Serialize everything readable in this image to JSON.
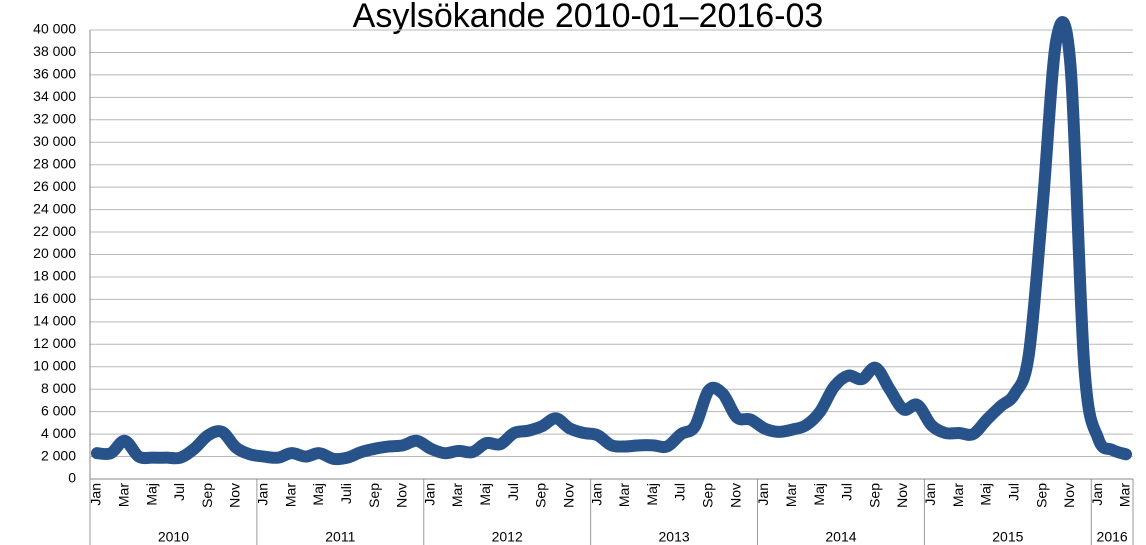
{
  "chart_data": {
    "type": "line",
    "title": "Asylsökande 2010-01–2016-03",
    "categories": [
      "Jan",
      null,
      "Mar",
      null,
      "Maj",
      null,
      "Jul",
      null,
      "Sep",
      null,
      "Nov",
      null,
      "Jan",
      null,
      "Mar",
      null,
      "Maj",
      null,
      "Juli",
      null,
      "Sep",
      null,
      "Nov",
      null,
      "Jan",
      null,
      "Mar",
      null,
      "Maj",
      null,
      "Jul",
      null,
      "Sep",
      null,
      "Nov",
      null,
      "Jan",
      null,
      "Mar",
      null,
      "Maj",
      null,
      "Jul",
      null,
      "Sep",
      null,
      "Nov",
      null,
      "Jan",
      null,
      "Mar",
      null,
      "Maj",
      null,
      "Jul",
      null,
      "Sep",
      null,
      "Nov",
      null,
      "Jan",
      null,
      "Mar",
      null,
      "Maj",
      null,
      "Jul",
      null,
      "Sep",
      null,
      "Nov",
      null,
      "Jan",
      null,
      "Mar"
    ],
    "years": [
      "2010",
      "2011",
      "2012",
      "2013",
      "2014",
      "2015",
      "2016"
    ],
    "series": [
      {
        "color": "#27538a",
        "values": [
          2300,
          2300,
          3400,
          2000,
          1900,
          1900,
          1900,
          2700,
          3900,
          4200,
          2800,
          2200,
          2000,
          1900,
          2300,
          2000,
          2300,
          1800,
          1900,
          2400,
          2700,
          2900,
          3000,
          3400,
          2700,
          2300,
          2500,
          2400,
          3200,
          3100,
          4100,
          4300,
          4700,
          5400,
          4500,
          4100,
          3900,
          3000,
          2900,
          3000,
          3000,
          2900,
          4000,
          4700,
          7900,
          7600,
          5500,
          5300,
          4500,
          4200,
          4400,
          4800,
          6000,
          8200,
          9200,
          8900,
          9900,
          8000,
          6200,
          6600,
          4800,
          4100,
          4100,
          4000,
          5300,
          6500,
          7600,
          11000,
          24300,
          39200,
          36900,
          10000,
          3600,
          2600,
          2200
        ]
      }
    ],
    "ylim": [
      0,
      40000
    ],
    "yticks": [
      0,
      {
        "value": 2000,
        "label": "2 000"
      },
      {
        "value": 4000,
        "label": "4 000"
      },
      {
        "value": 6000,
        "label": "6 000"
      },
      {
        "value": 8000,
        "label": "8 000"
      },
      {
        "value": 10000,
        "label": "10 000"
      },
      {
        "value": 12000,
        "label": "12 000"
      },
      {
        "value": 14000,
        "label": "14 000"
      },
      {
        "value": 16000,
        "label": "16 000"
      },
      {
        "value": 18000,
        "label": "18 000"
      },
      {
        "value": 20000,
        "label": "20 000"
      },
      {
        "value": 22000,
        "label": "22 000"
      },
      {
        "value": 24000,
        "label": "24 000"
      },
      {
        "value": 26000,
        "label": "26 000"
      },
      {
        "value": 28000,
        "label": "28 000"
      },
      {
        "value": 30000,
        "label": "30 000"
      },
      {
        "value": 32000,
        "label": "32 000"
      },
      {
        "value": 34000,
        "label": "34 000"
      },
      {
        "value": 36000,
        "label": "36 000"
      },
      {
        "value": 38000,
        "label": "38 000"
      },
      {
        "value": 40000,
        "label": "40 000"
      }
    ],
    "grid": true
  }
}
